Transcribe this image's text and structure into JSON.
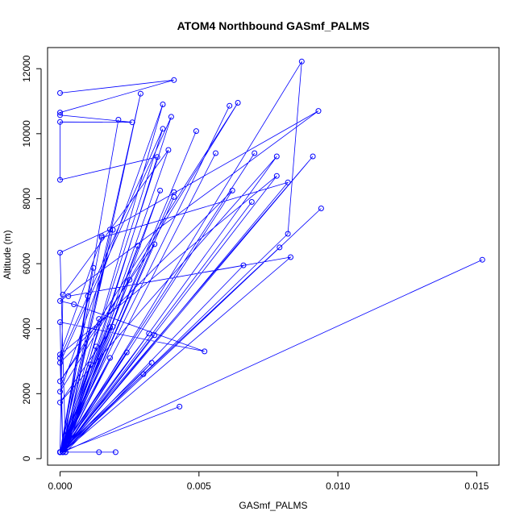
{
  "chart_data": {
    "type": "line",
    "title": "ATOM4 Northbound GASmf_PALMS",
    "xlabel": "GASmf_PALMS",
    "ylabel": "Altitude (m)",
    "xlim": [
      -0.00045,
      0.0158
    ],
    "ylim": [
      -200,
      12650
    ],
    "x_ticks": [
      0.0,
      0.005,
      0.01,
      0.015
    ],
    "x_tick_labels": [
      "0.000",
      "0.005",
      "0.010",
      "0.015"
    ],
    "y_ticks": [
      0,
      2000,
      4000,
      6000,
      8000,
      10000,
      12000
    ],
    "y_tick_labels": [
      "0",
      "2000",
      "4000",
      "6000",
      "8000",
      "10000",
      "12000"
    ],
    "grid": false,
    "legend": "none",
    "colors": {
      "series": "#0000ff",
      "axes": "#000000",
      "background": "#ffffff"
    },
    "series": [
      {
        "marker": "open-circle",
        "x": [
          0.0,
          0.0041,
          0.0,
          0.0,
          0.0026,
          0.0,
          0.0,
          0.0035,
          0.0002,
          0.0,
          0.0018,
          0.0093,
          0.0,
          0.0005,
          0.0052,
          0.0,
          0.0001,
          0.0078,
          0.0,
          0.0015,
          0.0082,
          0.0001,
          0.0028,
          0.0001,
          0.0094,
          0.0001,
          0.0,
          0.0037,
          0.0,
          0.0001,
          0.0039,
          0.0001,
          0.0083,
          0.0003,
          0.0066,
          0.0001,
          0.003,
          0.0001,
          0.0062,
          0.0,
          0.004,
          0.0001,
          0.0049,
          0.0001,
          0.0152,
          0.0001,
          0.0041,
          0.0001,
          0.0034,
          0.0,
          0.0064,
          0.0,
          0.0037,
          0.0001,
          0.0056,
          0.0001,
          0.0078,
          0.0,
          0.0019,
          0.0001,
          0.0029,
          0.0,
          0.007,
          0.0,
          0.0041,
          0.0,
          0.0043,
          0.0,
          0.0061,
          0.0,
          0.0032,
          0.0001,
          0.0087,
          0.0082,
          0.0001,
          0.0069,
          0.0001,
          0.0079,
          0.0,
          0.0036,
          0.0002,
          0.0033,
          0.0,
          0.0024,
          0.0001,
          0.0019,
          0.0,
          0.0021,
          0.0,
          0.0013,
          0.0,
          0.0015,
          0.0,
          0.0012,
          0.0,
          0.0018,
          0.0,
          0.0014,
          0.0,
          0.0025,
          0.0001,
          0.0011,
          0.0,
          0.0091,
          0.0001,
          0.001,
          0.0,
          0.0014,
          0.0,
          0.0018,
          0.0001,
          0.0034,
          0.0001,
          0.002
        ],
        "y": [
          11250,
          11650,
          10650,
          10570,
          10350,
          10360,
          8580,
          9280,
          200,
          6340,
          7050,
          10700,
          4850,
          4750,
          3300,
          4200,
          200,
          8700,
          3200,
          6800,
          8500,
          200,
          6550,
          200,
          7700,
          200,
          3100,
          10150,
          200,
          5050,
          9500,
          200,
          6200,
          5000,
          5950,
          200,
          2600,
          200,
          8250,
          2950,
          10520,
          200,
          10080,
          200,
          6120,
          200,
          8050,
          200,
          6600,
          2380,
          10950,
          2060,
          10900,
          200,
          9400,
          200,
          9300,
          1730,
          4060,
          200,
          11230,
          200,
          9400,
          200,
          8200,
          200,
          1600,
          200,
          10860,
          200,
          3850,
          200,
          12220,
          6920,
          200,
          7900,
          200,
          6500,
          200,
          8250,
          200,
          2950,
          200,
          3270,
          200,
          7040,
          200,
          10430,
          200,
          3450,
          200,
          6850,
          200,
          5870,
          200,
          4050,
          200,
          4300,
          200,
          5500,
          200,
          2900,
          200,
          9300,
          200,
          5000,
          200,
          200,
          200,
          3100,
          200,
          3800,
          200,
          200
        ]
      }
    ]
  }
}
